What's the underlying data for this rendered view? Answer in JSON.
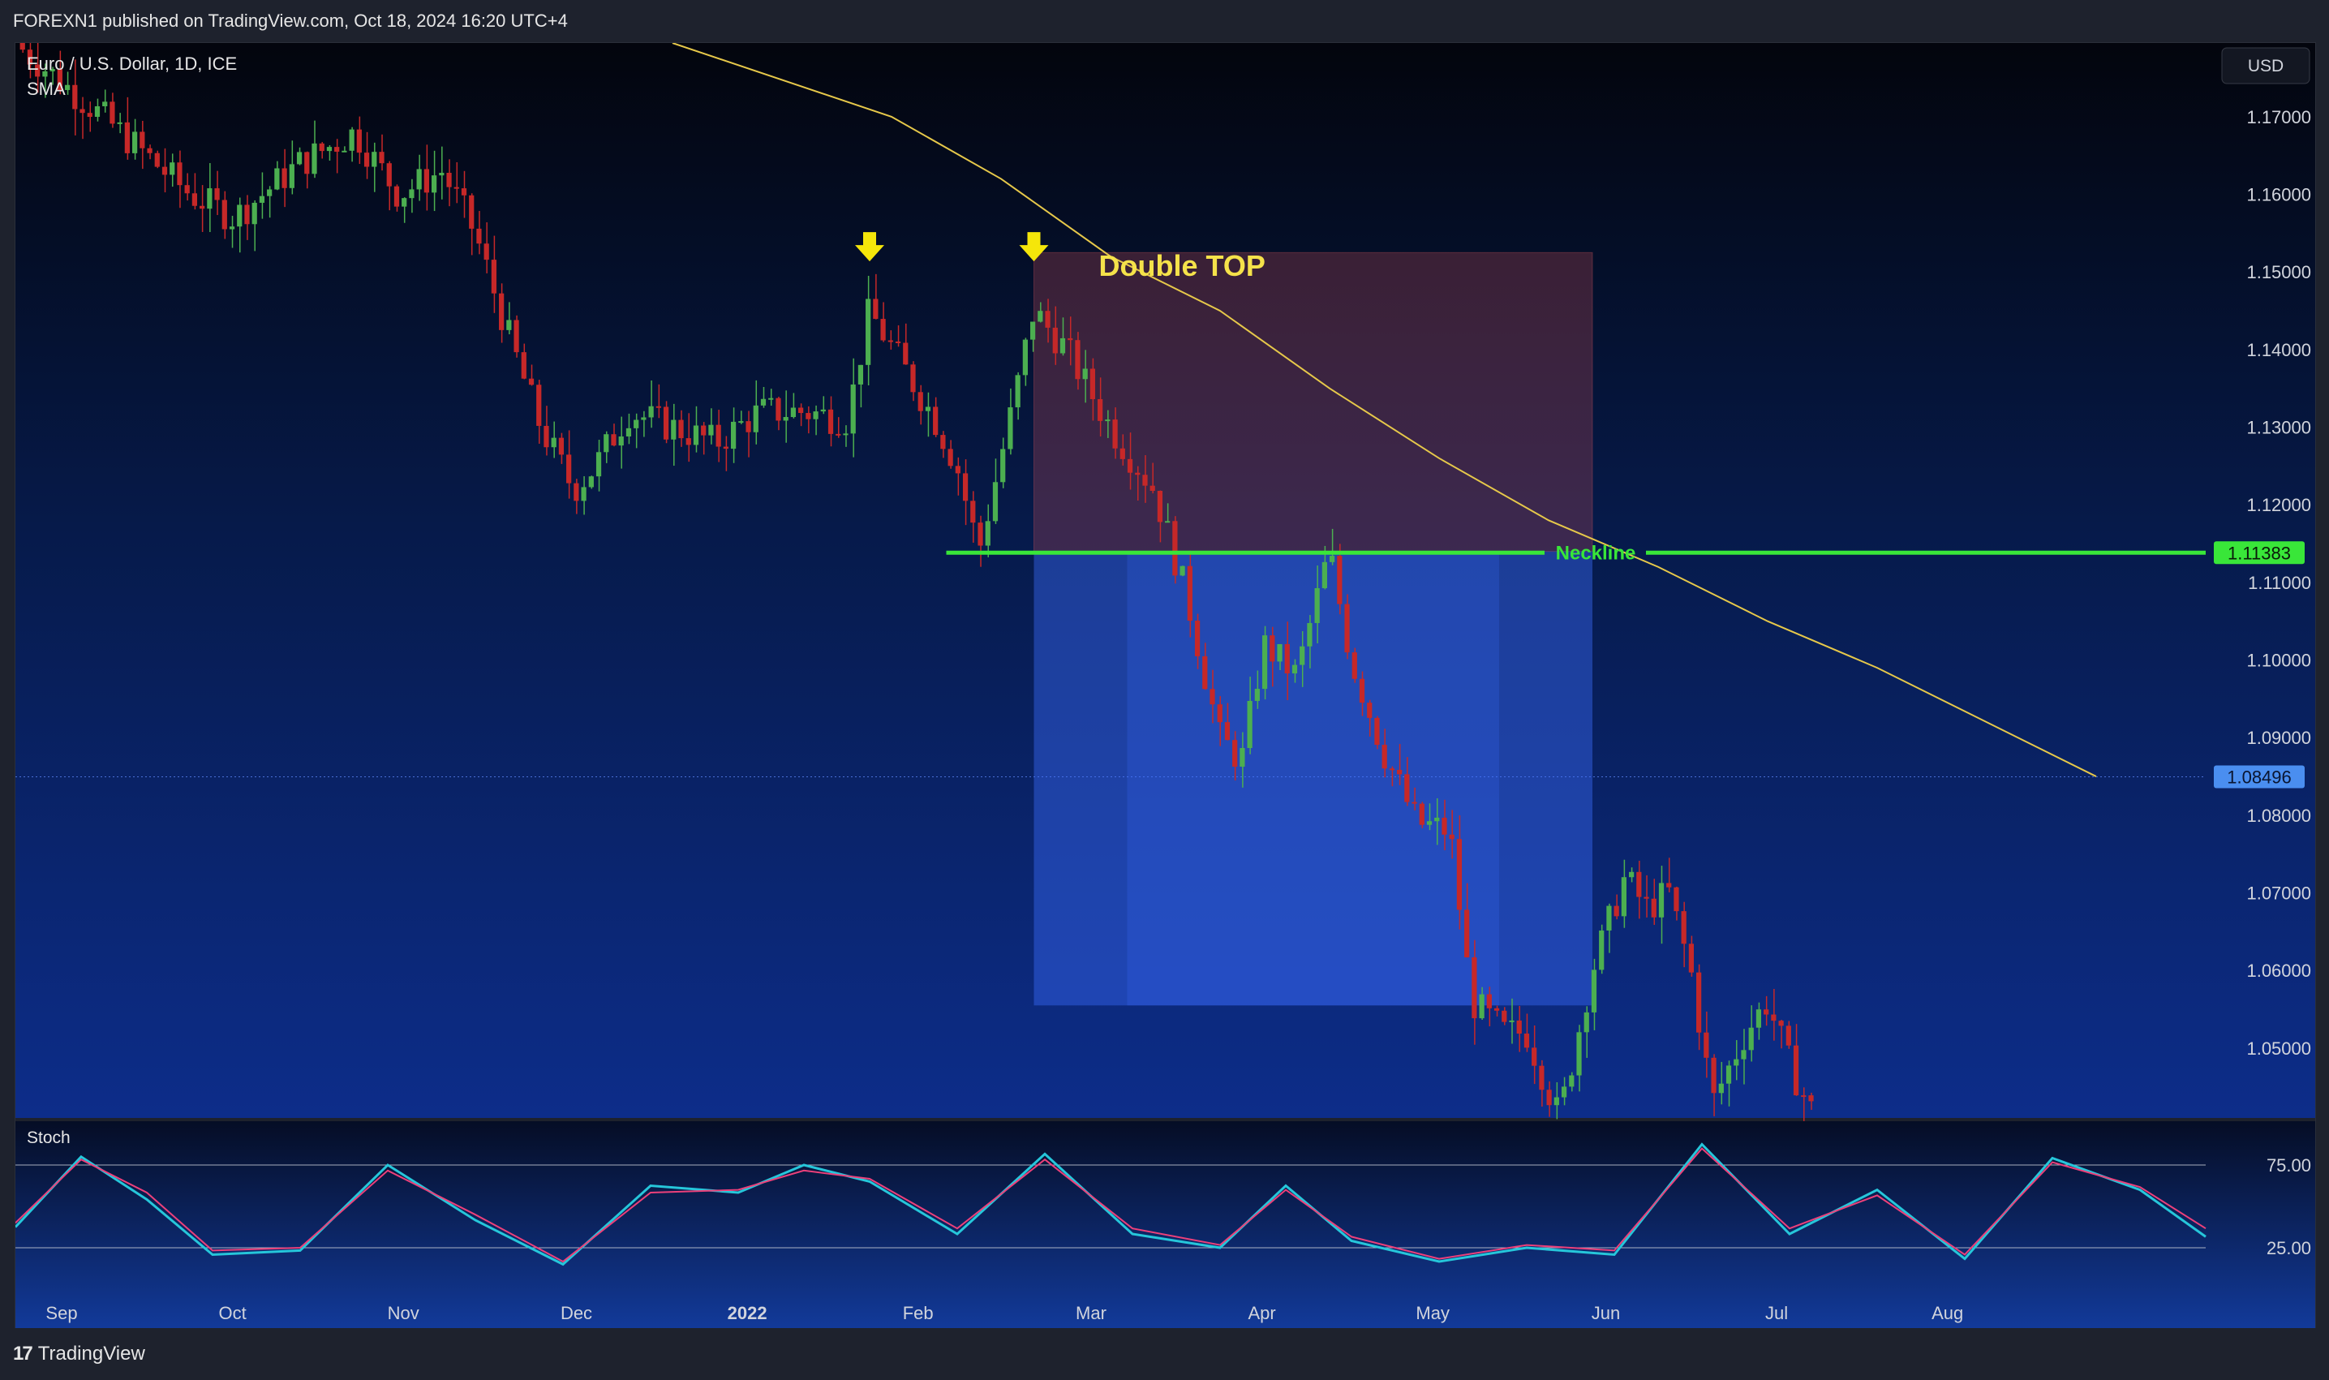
{
  "header": {
    "published": "FOREXN1 published on TradingView.com, Oct 18, 2024 16:20 UTC+4"
  },
  "footer": {
    "brand": "TradingView"
  },
  "colors": {
    "bull": "#4caf50",
    "bear": "#c62828",
    "sma": "#e6c84a",
    "neckline": "#39e639",
    "stoch_k": "#26c6da",
    "stoch_d": "#ec407a"
  },
  "chart_data": [
    {
      "type": "candlestick",
      "title": "Euro / U.S. Dollar, 1D, ICE",
      "indicator": "SMA",
      "currency": "USD",
      "x_ticks": [
        "Sep",
        "Oct",
        "Nov",
        "Dec",
        "2022",
        "Feb",
        "Mar",
        "Apr",
        "May",
        "Jun",
        "Jul",
        "Aug"
      ],
      "y_ticks": [
        "1.17000",
        "1.16000",
        "1.15000",
        "1.14000",
        "1.13000",
        "1.12000",
        "1.11000",
        "1.10000",
        "1.09000",
        "1.08000",
        "1.07000",
        "1.06000",
        "1.05000"
      ],
      "ylim": [
        1.041,
        1.1795
      ],
      "close_path": [
        [
          0,
          1.1795
        ],
        [
          0.04,
          1.17
        ],
        [
          0.06,
          1.165
        ],
        [
          0.08,
          1.16
        ],
        [
          0.1,
          1.157
        ],
        [
          0.13,
          1.164
        ],
        [
          0.155,
          1.168
        ],
        [
          0.175,
          1.16
        ],
        [
          0.195,
          1.163
        ],
        [
          0.21,
          1.155
        ],
        [
          0.225,
          1.142
        ],
        [
          0.24,
          1.13
        ],
        [
          0.255,
          1.122
        ],
        [
          0.265,
          1.125
        ],
        [
          0.28,
          1.132
        ],
        [
          0.3,
          1.13
        ],
        [
          0.32,
          1.128
        ],
        [
          0.34,
          1.132
        ],
        [
          0.36,
          1.132
        ],
        [
          0.38,
          1.131
        ],
        [
          0.39,
          1.145
        ],
        [
          0.405,
          1.138
        ],
        [
          0.42,
          1.131
        ],
        [
          0.43,
          1.125
        ],
        [
          0.44,
          1.114
        ],
        [
          0.455,
          1.132
        ],
        [
          0.465,
          1.145
        ],
        [
          0.48,
          1.14
        ],
        [
          0.5,
          1.13
        ],
        [
          0.52,
          1.122
        ],
        [
          0.535,
          1.108
        ],
        [
          0.55,
          1.09
        ],
        [
          0.56,
          1.087
        ],
        [
          0.57,
          1.102
        ],
        [
          0.585,
          1.098
        ],
        [
          0.6,
          1.114
        ],
        [
          0.61,
          1.1
        ],
        [
          0.625,
          1.088
        ],
        [
          0.64,
          1.079
        ],
        [
          0.655,
          1.078
        ],
        [
          0.665,
          1.056
        ],
        [
          0.68,
          1.052
        ],
        [
          0.69,
          1.052
        ],
        [
          0.705,
          1.041
        ],
        [
          0.72,
          1.06
        ],
        [
          0.735,
          1.072
        ],
        [
          0.745,
          1.068
        ],
        [
          0.755,
          1.07
        ],
        [
          0.765,
          1.06
        ],
        [
          0.775,
          1.043
        ],
        [
          0.79,
          1.052
        ],
        [
          0.8,
          1.056
        ],
        [
          0.81,
          1.048
        ],
        [
          0.82,
          1.042
        ]
      ],
      "sma_path": [
        [
          0.3,
          1.1795
        ],
        [
          0.4,
          1.17
        ],
        [
          0.45,
          1.162
        ],
        [
          0.5,
          1.152
        ],
        [
          0.55,
          1.145
        ],
        [
          0.6,
          1.135
        ],
        [
          0.65,
          1.126
        ],
        [
          0.7,
          1.118
        ],
        [
          0.75,
          1.112
        ],
        [
          0.8,
          1.105
        ],
        [
          0.85,
          1.099
        ],
        [
          0.9,
          1.092
        ],
        [
          0.95,
          1.085
        ]
      ],
      "annotations": {
        "pattern_label": "Double TOP",
        "neckline_label": "Neckline",
        "neckline_value": "1.11383",
        "neckline_price": 1.11383,
        "last_price_label": "1.08496",
        "last_price": 1.08496,
        "top_markers": [
          {
            "x": 0.39,
            "price": 1.152
          },
          {
            "x": 0.465,
            "price": 1.152
          }
        ],
        "bearish_zone": {
          "x_from": 0.465,
          "x_to": 0.72,
          "price_from": 1.114,
          "price_to": 1.1525
        },
        "target_zone": {
          "x_from": 0.465,
          "x_to": 0.72,
          "price_from": 1.0555,
          "price_to": 1.114
        }
      }
    },
    {
      "type": "line",
      "title": "Stoch",
      "y_ticks": [
        "75.00",
        "25.00"
      ],
      "ylim": [
        0,
        100
      ],
      "levels": [
        80,
        20
      ],
      "series": [
        {
          "values": [
            [
              0,
              35
            ],
            [
              0.03,
              86
            ],
            [
              0.06,
              55
            ],
            [
              0.09,
              15
            ],
            [
              0.13,
              18
            ],
            [
              0.17,
              80
            ],
            [
              0.21,
              40
            ],
            [
              0.25,
              8
            ],
            [
              0.29,
              65
            ],
            [
              0.33,
              60
            ],
            [
              0.36,
              80
            ],
            [
              0.39,
              68
            ],
            [
              0.43,
              30
            ],
            [
              0.47,
              88
            ],
            [
              0.51,
              30
            ],
            [
              0.55,
              20
            ],
            [
              0.58,
              65
            ],
            [
              0.61,
              25
            ],
            [
              0.65,
              10
            ],
            [
              0.69,
              20
            ],
            [
              0.73,
              15
            ],
            [
              0.77,
              95
            ],
            [
              0.81,
              30
            ],
            [
              0.85,
              62
            ],
            [
              0.89,
              12
            ],
            [
              0.93,
              85
            ],
            [
              0.97,
              62
            ],
            [
              1.0,
              28
            ]
          ]
        },
        {
          "values": [
            [
              0,
              38
            ],
            [
              0.03,
              84
            ],
            [
              0.06,
              60
            ],
            [
              0.09,
              18
            ],
            [
              0.13,
              20
            ],
            [
              0.17,
              76
            ],
            [
              0.21,
              44
            ],
            [
              0.25,
              10
            ],
            [
              0.29,
              60
            ],
            [
              0.33,
              62
            ],
            [
              0.36,
              76
            ],
            [
              0.39,
              70
            ],
            [
              0.43,
              34
            ],
            [
              0.47,
              84
            ],
            [
              0.51,
              34
            ],
            [
              0.55,
              22
            ],
            [
              0.58,
              62
            ],
            [
              0.61,
              28
            ],
            [
              0.65,
              12
            ],
            [
              0.69,
              22
            ],
            [
              0.73,
              18
            ],
            [
              0.77,
              92
            ],
            [
              0.81,
              34
            ],
            [
              0.85,
              58
            ],
            [
              0.89,
              15
            ],
            [
              0.93,
              82
            ],
            [
              0.97,
              64
            ],
            [
              1.0,
              34
            ]
          ]
        }
      ]
    }
  ]
}
